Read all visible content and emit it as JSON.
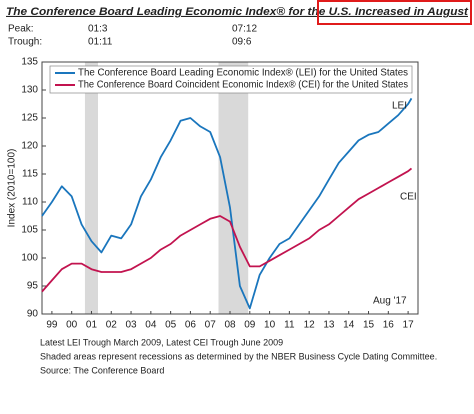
{
  "chart_data": {
    "type": "line",
    "title": "The Conference Board Leading Economic Index® for the U.S. Increased in August",
    "recession_dates": {
      "peak_label": "Peak:",
      "peaks": [
        "01:3",
        "07:12"
      ],
      "trough_label": "Trough:",
      "troughs": [
        "01:11",
        "09:6"
      ]
    },
    "y_label": "Index (2010=100)",
    "x": [
      1999.0,
      1999.5,
      2000.0,
      2000.5,
      2001.0,
      2001.5,
      2002.0,
      2002.5,
      2003.0,
      2003.5,
      2004.0,
      2004.5,
      2005.0,
      2005.5,
      2006.0,
      2006.5,
      2007.0,
      2007.5,
      2008.0,
      2008.5,
      2009.0,
      2009.5,
      2010.0,
      2010.5,
      2011.0,
      2011.5,
      2012.0,
      2012.5,
      2013.0,
      2013.5,
      2014.0,
      2014.5,
      2015.0,
      2015.5,
      2016.0,
      2016.5,
      2017.0,
      2017.5,
      2017.67
    ],
    "series": [
      {
        "name": "The Conference Board Leading Economic Index® (LEI) for the United States",
        "color": "#1a76bd",
        "values": [
          107.5,
          110,
          112.8,
          111,
          106,
          103,
          101,
          104,
          103.5,
          106,
          111,
          114,
          118,
          121,
          124.5,
          125,
          123.5,
          122.5,
          118,
          109,
          95,
          91,
          97,
          100,
          102.5,
          103.5,
          106,
          108.5,
          111,
          114,
          117,
          119,
          121,
          122,
          122.5,
          124,
          125.5,
          127.5,
          128.5
        ]
      },
      {
        "name": "The Conference Board Coincident Economic Index® (CEI) for the United States",
        "color": "#c2134f",
        "values": [
          94,
          96,
          98,
          99,
          99,
          98,
          97.5,
          97.5,
          97.5,
          98,
          99,
          100,
          101.5,
          102.5,
          104,
          105,
          106,
          107,
          107.5,
          106.5,
          102,
          98.5,
          98.5,
          99.5,
          100.5,
          101.5,
          102.5,
          103.5,
          105,
          106,
          107.5,
          109,
          110.5,
          111.5,
          112.5,
          113.5,
          114.5,
          115.5,
          116
        ]
      }
    ],
    "recessions": [
      [
        2001.17,
        2001.83
      ],
      [
        2007.92,
        2009.42
      ]
    ],
    "annotations": [
      "LEI",
      "CEI",
      "Aug '17"
    ],
    "xlim": [
      1999,
      2018
    ],
    "xticks": [
      {
        "value": 1999.5,
        "label": "99"
      },
      {
        "value": 2000.5,
        "label": "00"
      },
      {
        "value": 2001.5,
        "label": "01"
      },
      {
        "value": 2002.5,
        "label": "02"
      },
      {
        "value": 2003.5,
        "label": "03"
      },
      {
        "value": 2004.5,
        "label": "04"
      },
      {
        "value": 2005.5,
        "label": "05"
      },
      {
        "value": 2006.5,
        "label": "06"
      },
      {
        "value": 2007.5,
        "label": "07"
      },
      {
        "value": 2008.5,
        "label": "08"
      },
      {
        "value": 2009.5,
        "label": "09"
      },
      {
        "value": 2010.5,
        "label": "10"
      },
      {
        "value": 2011.5,
        "label": "11"
      },
      {
        "value": 2012.5,
        "label": "12"
      },
      {
        "value": 2013.5,
        "label": "13"
      },
      {
        "value": 2014.5,
        "label": "14"
      },
      {
        "value": 2015.5,
        "label": "15"
      },
      {
        "value": 2016.5,
        "label": "16"
      },
      {
        "value": 2017.5,
        "label": "17"
      }
    ],
    "ylim": [
      90,
      135
    ],
    "yticks": [
      90,
      95,
      100,
      105,
      110,
      115,
      120,
      125,
      130,
      135
    ],
    "footnotes": [
      "Latest LEI Trough March 2009, Latest CEI Trough June 2009",
      "Shaded areas represent recessions as determined by the NBER Business Cycle Dating Committee.",
      "Source: The Conference Board"
    ]
  }
}
